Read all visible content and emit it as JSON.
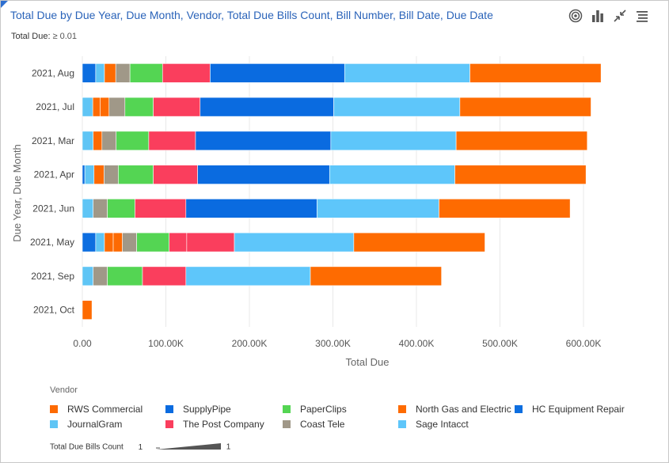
{
  "header": {
    "title": "Total Due by Due Year, Due Month, Vendor, Total Due Bills Count, Bill Number, Bill Date, Due Date",
    "filter_label": "Total Due:",
    "filter_value": "≥ 0.01"
  },
  "toolbar": {
    "icons": [
      "target-icon",
      "bar-chart-icon",
      "collapse-icon",
      "menu-icon"
    ]
  },
  "legend": {
    "title": "Vendor",
    "size_title": "Total Due Bills Count",
    "size_min": "1",
    "size_max": "1"
  },
  "colors": {
    "RWS Commercial": "#fd6a02",
    "SupplyPipe": "#0a6be0",
    "PaperClips": "#54d553",
    "North Gas and Electric": "#fe6b01",
    "HC Equipment Repair": "#0d6ee0",
    "JournalGram": "#5fc5f5",
    "The Post Company": "#fa3e5d",
    "Coast Tele": "#a09888",
    "Sage Intacct": "#5ec6fa"
  },
  "chart_data": {
    "type": "bar",
    "orientation": "horizontal",
    "stacked": true,
    "xlabel": "Total Due",
    "ylabel": "Due Year, Due Month",
    "xlim": [
      0,
      620000
    ],
    "xticks": [
      0,
      100000,
      200000,
      300000,
      400000,
      500000,
      600000
    ],
    "xtick_labels": [
      "0.00",
      "100.00K",
      "200.00K",
      "300.00K",
      "400.00K",
      "500.00K",
      "600.00K"
    ],
    "grid": true,
    "legend_position": "bottom",
    "categories": [
      "2021, Aug",
      "2021, Jul",
      "2021, Mar",
      "2021, Apr",
      "2021, Jun",
      "2021, May",
      "2021, Sep",
      "2021, Oct"
    ],
    "segments": [
      [
        [
          "HC Equipment Repair",
          16000
        ],
        [
          "JournalGram",
          10500
        ],
        [
          "RWS Commercial",
          13500
        ],
        [
          "Coast Tele",
          17000
        ],
        [
          "PaperClips",
          39000
        ],
        [
          "The Post Company",
          57000
        ],
        [
          "SupplyPipe",
          161000
        ],
        [
          "Sage Intacct",
          150000
        ],
        [
          "North Gas and Electric",
          157000
        ]
      ],
      [
        [
          "JournalGram",
          12500
        ],
        [
          "RWS Commercial",
          9000
        ],
        [
          "RWS Commercial",
          10500
        ],
        [
          "Coast Tele",
          19000
        ],
        [
          "PaperClips",
          34000
        ],
        [
          "The Post Company",
          56000
        ],
        [
          "SupplyPipe",
          160000
        ],
        [
          "Sage Intacct",
          151000
        ],
        [
          "North Gas and Electric",
          157000
        ]
      ],
      [
        [
          "JournalGram",
          13000
        ],
        [
          "RWS Commercial",
          10500
        ],
        [
          "Coast Tele",
          17000
        ],
        [
          "PaperClips",
          39000
        ],
        [
          "The Post Company",
          56000
        ],
        [
          "SupplyPipe",
          162000
        ],
        [
          "Sage Intacct",
          150000
        ],
        [
          "North Gas and Electric",
          157000
        ]
      ],
      [
        [
          "HC Equipment Repair",
          3000
        ],
        [
          "JournalGram",
          11000
        ],
        [
          "RWS Commercial",
          12000
        ],
        [
          "Coast Tele",
          17000
        ],
        [
          "PaperClips",
          42000
        ],
        [
          "The Post Company",
          53000
        ],
        [
          "SupplyPipe",
          158000
        ],
        [
          "Sage Intacct",
          150000
        ],
        [
          "North Gas and Electric",
          157000
        ]
      ],
      [
        [
          "JournalGram",
          13000
        ],
        [
          "Coast Tele",
          17000
        ],
        [
          "PaperClips",
          33000
        ],
        [
          "The Post Company",
          61000
        ],
        [
          "SupplyPipe",
          157000
        ],
        [
          "Sage Intacct",
          146000
        ],
        [
          "North Gas and Electric",
          157000
        ]
      ],
      [
        [
          "HC Equipment Repair",
          16000
        ],
        [
          "JournalGram",
          10500
        ],
        [
          "RWS Commercial",
          10500
        ],
        [
          "RWS Commercial",
          11000
        ],
        [
          "Coast Tele",
          17000
        ],
        [
          "PaperClips",
          39000
        ],
        [
          "The Post Company",
          21000
        ],
        [
          "The Post Company",
          57000
        ],
        [
          "Sage Intacct",
          143000
        ],
        [
          "North Gas and Electric",
          157000
        ]
      ],
      [
        [
          "JournalGram",
          13000
        ],
        [
          "Coast Tele",
          17000
        ],
        [
          "PaperClips",
          42000
        ],
        [
          "The Post Company",
          52000
        ],
        [
          "Sage Intacct",
          149000
        ],
        [
          "North Gas and Electric",
          157000
        ]
      ],
      [
        [
          "North Gas and Electric",
          11500
        ]
      ]
    ],
    "legend_entries": [
      "RWS Commercial",
      "SupplyPipe",
      "PaperClips",
      "North Gas and Electric",
      "HC Equipment Repair",
      "JournalGram",
      "The Post Company",
      "Coast Tele",
      "Sage Intacct"
    ]
  }
}
